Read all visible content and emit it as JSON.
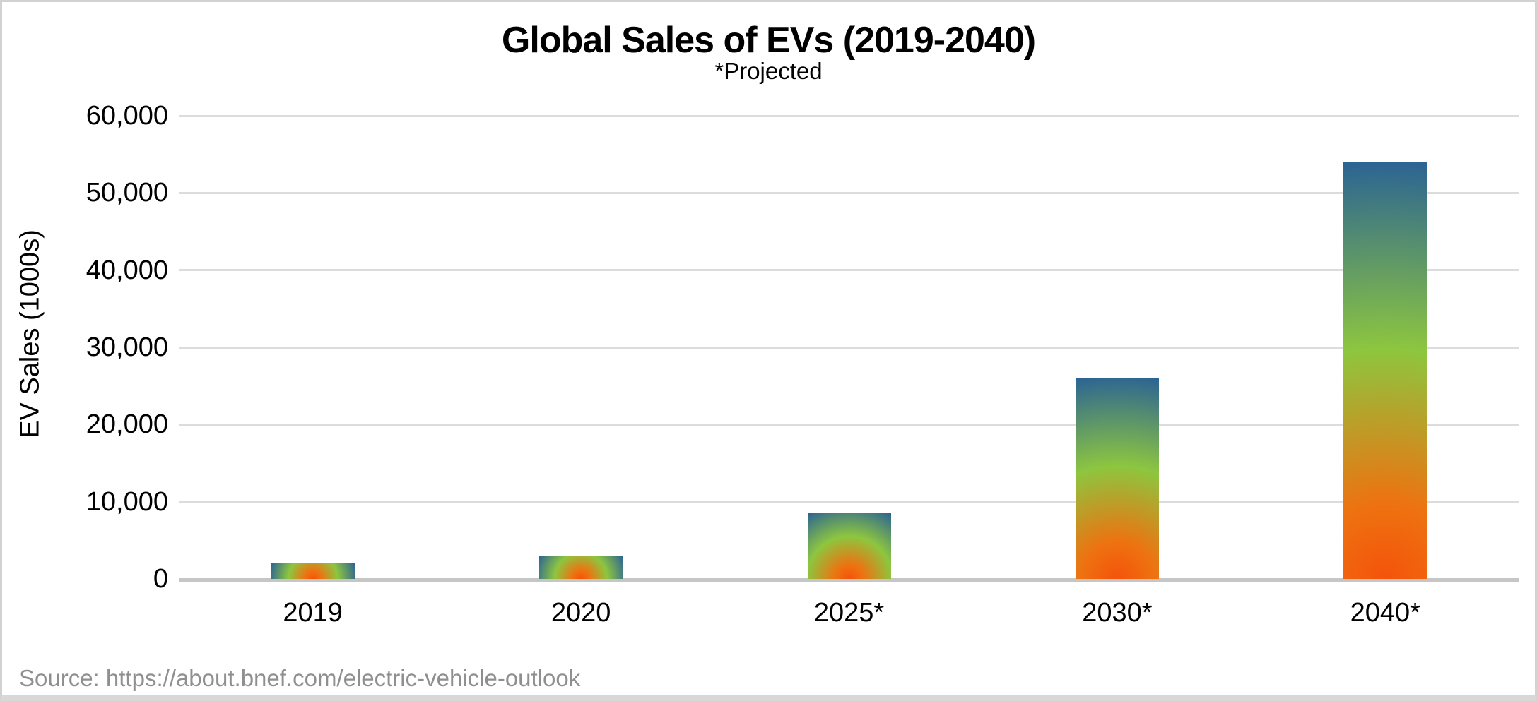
{
  "page": {
    "background": "#ffffff",
    "frame_border_color": "#d2d2d2",
    "frame_bottom_band_color": "#d8d8d8"
  },
  "chart_data": {
    "type": "bar",
    "title": "Global Sales of EVs (2019-2040)",
    "subtitle": "*Projected",
    "ylabel": "EV Sales (1000s)",
    "xlabel": "",
    "categories": [
      "2019",
      "2020",
      "2025*",
      "2030*",
      "2040*"
    ],
    "values": [
      2100,
      3000,
      8500,
      26000,
      54000
    ],
    "ylim": [
      0,
      60000
    ],
    "ytick_step": 10000,
    "ytick_labels": [
      "0",
      "10,000",
      "20,000",
      "30,000",
      "40,000",
      "50,000",
      "60,000"
    ],
    "grid": true,
    "legend_position": "none",
    "bar_gradient_stops": [
      {
        "color": "#f4530b",
        "pos": 0
      },
      {
        "color": "#ee7210",
        "pos": 18
      },
      {
        "color": "#8dc63f",
        "pos": 55
      },
      {
        "color": "#2b6394",
        "pos": 100
      }
    ],
    "gridline_color": "#dcdcdc",
    "baseline_color": "#c6c6c6",
    "source": "Source: https://about.bnef.com/electric-vehicle-outlook",
    "source_color": "#8f8f8f"
  }
}
